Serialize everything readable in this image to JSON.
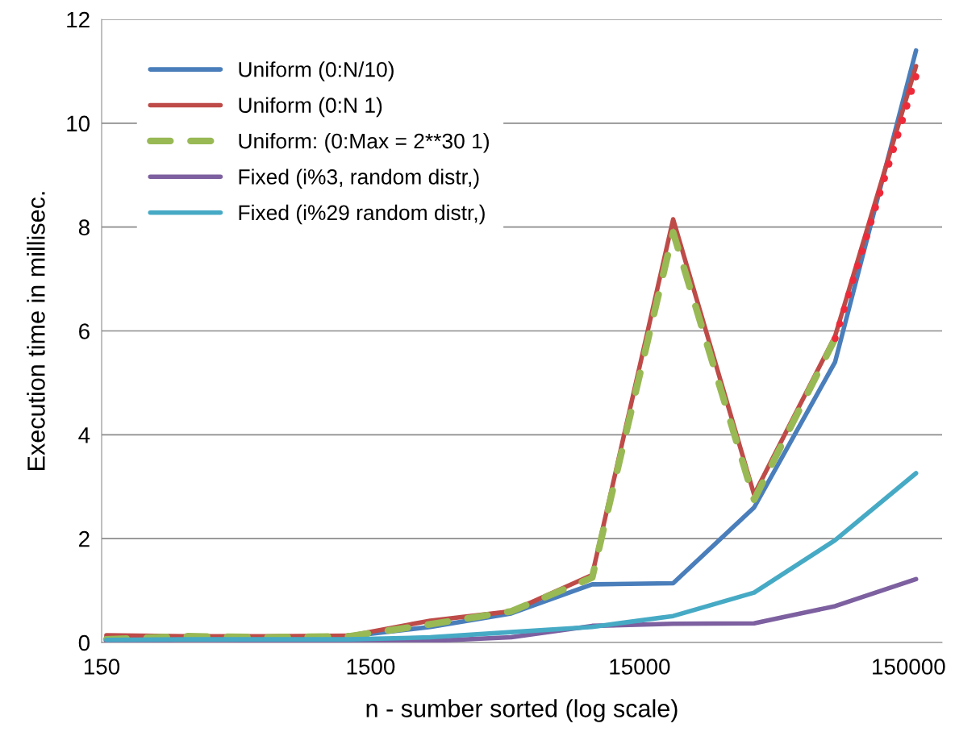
{
  "chart_data": {
    "type": "line",
    "xlabel": "n - sumber sorted (log scale)",
    "ylabel": "Execution time in millisec.",
    "x": [
      156.25,
      312.5,
      625,
      1250,
      2500,
      5000,
      10000,
      20000,
      40000,
      80000,
      160000
    ],
    "log": "x",
    "xlim": [
      150,
      200000
    ],
    "xticks": [
      150,
      1500,
      15000,
      150000
    ],
    "ylim": [
      0,
      12
    ],
    "yticks": [
      0,
      2,
      4,
      6,
      8,
      10,
      12
    ],
    "grid": "y",
    "legend": "top left",
    "marker": "none",
    "series": [
      {
        "name": "Uniform (0:N/10)",
        "color": "#4a7ebb",
        "line_style": "solid",
        "values": [
          0.1,
          0.1,
          0.1,
          0.12,
          0.3,
          0.56,
          1.12,
          1.14,
          2.6,
          5.4,
          11.4
        ]
      },
      {
        "name": "Uniform (0:N 1)",
        "color": "#be4b48",
        "line_style": "solid",
        "values": [
          0.14,
          0.12,
          0.12,
          0.13,
          0.42,
          0.6,
          1.3,
          8.15,
          2.85,
          5.9,
          11.1
        ]
      },
      {
        "name": "Uniform: (0:Max = 2**30 1)",
        "color": "#98b954",
        "line_style": "dashed",
        "values": [
          0.06,
          0.12,
          0.1,
          0.12,
          0.35,
          0.6,
          1.25,
          7.9,
          2.75,
          5.85,
          null
        ]
      },
      {
        "name": "Fixed (i%3, random distr,)",
        "color": "#7d60a0",
        "line_style": "solid",
        "values": [
          0.02,
          0.05,
          0.04,
          0.01,
          0.03,
          0.1,
          0.32,
          0.36,
          0.37,
          0.7,
          1.22
        ]
      },
      {
        "name": "Fixed (i%29 random distr,)",
        "color": "#46aac5",
        "line_style": "solid",
        "values": [
          0.05,
          0.06,
          0.06,
          0.06,
          0.1,
          0.2,
          0.3,
          0.51,
          0.96,
          1.97,
          3.26
        ]
      },
      {
        "color": "#ee2a3a",
        "line_style": "dotted",
        "x": [
          80000,
          160000
        ],
        "values": [
          5.85,
          10.9
        ]
      }
    ]
  }
}
